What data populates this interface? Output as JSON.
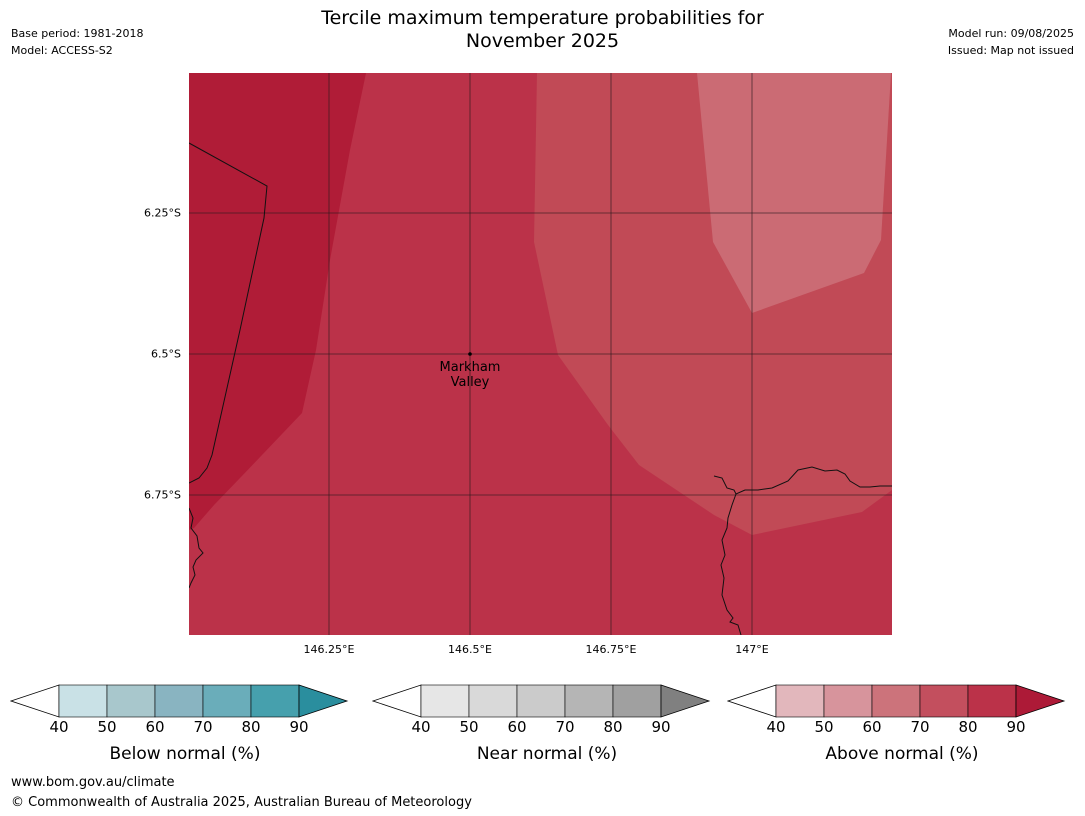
{
  "header": {
    "title_line1": "Tercile maximum temperature probabilities for",
    "title_line2": "November 2025",
    "base_period": "Base period: 1981-2018",
    "model": "Model: ACCESS-S2",
    "model_run": "Model run: 09/08/2025",
    "issued": "Issued: Map not issued"
  },
  "map": {
    "lat_labels": [
      "6.25°S",
      "6.5°S",
      "6.75°S"
    ],
    "lon_labels": [
      "146.25°E",
      "146.5°E",
      "146.75°E",
      "147°E"
    ],
    "place": {
      "name_line1": "Markham",
      "name_line2": "Valley",
      "lon": 146.5,
      "lat": -6.5
    },
    "zones": [
      {
        "category": "above-normal",
        "range": "80-90",
        "color": "#b01c37"
      },
      {
        "category": "above-normal",
        "range": "70-80",
        "color": "#bb3249"
      },
      {
        "category": "above-normal",
        "range": "60-70",
        "color": "#c14a56"
      },
      {
        "category": "above-normal",
        "range": "50-60",
        "color": "#cb6b74"
      }
    ]
  },
  "legends": [
    {
      "id": "below",
      "title": "Below normal (%)",
      "ticks": [
        "40",
        "50",
        "60",
        "70",
        "80",
        "90"
      ],
      "low_color": "#ffffff",
      "colors": [
        "#c9e1e6",
        "#a8c7cc",
        "#89b4c1",
        "#6aadba",
        "#46a0ad"
      ],
      "high_color": "#2a8e9e"
    },
    {
      "id": "near",
      "title": "Near normal (%)",
      "ticks": [
        "40",
        "50",
        "60",
        "70",
        "80",
        "90"
      ],
      "low_color": "#ffffff",
      "colors": [
        "#e6e6e6",
        "#d9d9d9",
        "#cbcbcb",
        "#b5b5b5",
        "#a0a0a0"
      ],
      "high_color": "#808080"
    },
    {
      "id": "above",
      "title": "Above normal (%)",
      "ticks": [
        "40",
        "50",
        "60",
        "70",
        "80",
        "90"
      ],
      "low_color": "#ffffff",
      "colors": [
        "#e2b7bc",
        "#d7949c",
        "#cc737b",
        "#c34f5e",
        "#bb3249"
      ],
      "high_color": "#ad1a37"
    }
  ],
  "footer": {
    "url": "www.bom.gov.au/climate",
    "copyright": "© Commonwealth of Australia 2025, Australian Bureau of Meteorology"
  }
}
